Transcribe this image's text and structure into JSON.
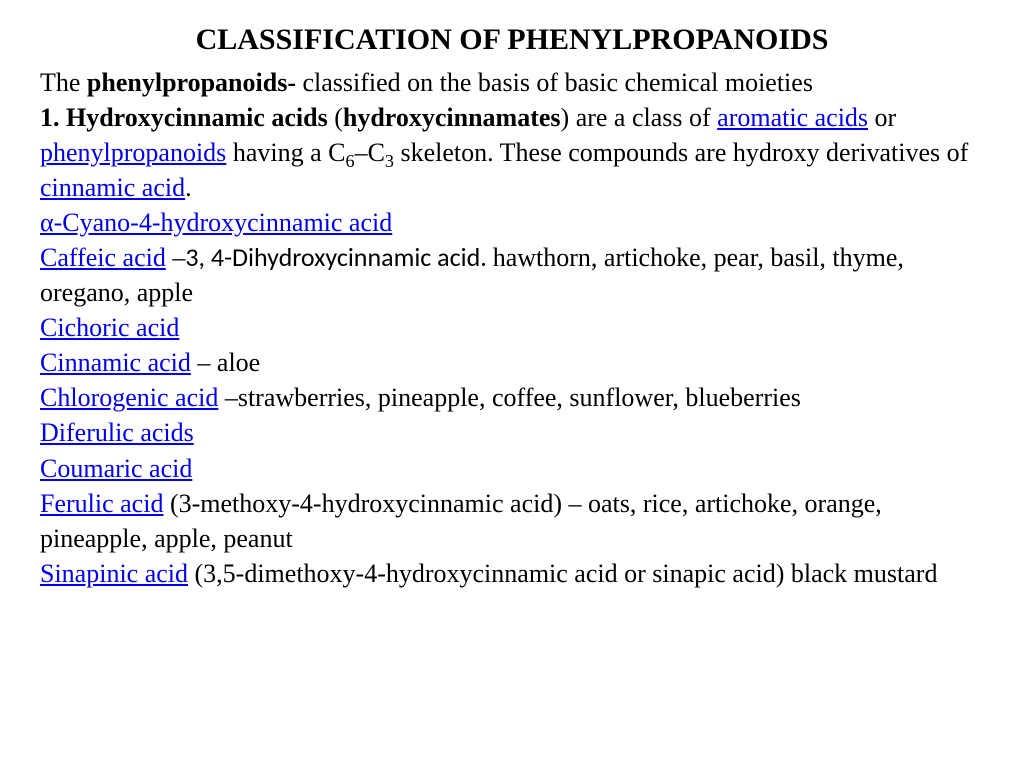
{
  "title": "CLASSIFICATION OF PHENYLPROPANOIDS",
  "intro": {
    "prefix": "The ",
    "bold": "phenylpropanoids-",
    "suffix": " classified on the basis of  basic chemical moieties"
  },
  "section1": {
    "num": "1. ",
    "head1": "Hydroxycinnamic acids",
    "paren_open": " (",
    "head2": "hydroxycinnamates",
    "paren_close": ") are a class of ",
    "link1": "aromatic acids",
    "mid1": " or ",
    "link2": "phenylpropanoids",
    "mid2": " having a C",
    "sub1": "6",
    "mid3": "–C",
    "sub2": "3",
    "mid4": " skeleton. These compounds are hydroxy derivatives of ",
    "link3": "cinnamic acid",
    "end": "."
  },
  "items": {
    "cyano": "α-Cyano-4-hydroxycinnamic acid",
    "caffeic": "Caffeic acid",
    "caffeic_dash": " –",
    "caffeic_alt": "3, 4-Dihydroxycinnamic acid. ",
    "caffeic_tail": "hawthorn, artichoke, pear, basil, thyme, oregano, apple",
    "cichoric": "Cichoric acid",
    "cinnamic": "Cinnamic acid",
    "cinnamic_tail": " – aloe",
    "chlorogenic": "Chlorogenic acid",
    "chlorogenic_tail": " –strawberries, pineapple, coffee, sunflower, blueberries",
    "diferulic": "Diferulic acids",
    "coumaric": "Coumaric acid",
    "ferulic": "Ferulic acid",
    "ferulic_tail": " (3-methoxy-4-hydroxycinnamic acid) – oats, rice, artichoke, orange, pineapple, apple, peanut",
    "sinapinic": "Sinapinic acid",
    "sinapinic_tail": " (3,5-dimethoxy-4-hydroxycinnamic acid or sinapic acid) black mustard"
  },
  "colors": {
    "text": "#000000",
    "link": "#0000ee",
    "background": "#ffffff"
  }
}
